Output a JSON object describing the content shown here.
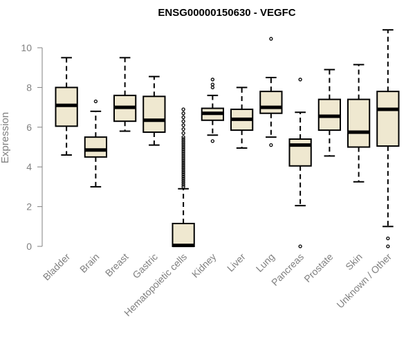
{
  "chart_data": {
    "type": "boxplot",
    "title": "ENSG00000150630 - VEGFC",
    "xlabel": "",
    "ylabel": "Expression",
    "ylim": [
      0,
      11
    ],
    "yticks": [
      0,
      2,
      4,
      6,
      8,
      10
    ],
    "grid": false,
    "legend": "none",
    "colors": {
      "box_fill": "#efe8d0",
      "stroke": "#000000",
      "axis": "#808080"
    },
    "categories": [
      "Bladder",
      "Brain",
      "Breast",
      "Gastric",
      "Hematopoietic cells",
      "Kidney",
      "Liver",
      "Lung",
      "Pancreas",
      "Prostate",
      "Skin",
      "Unknown / Other"
    ],
    "boxes": [
      {
        "whisker_low": 4.6,
        "q1": 6.05,
        "median": 7.1,
        "q3": 8.0,
        "whisker_high": 9.5,
        "outliers": []
      },
      {
        "whisker_low": 3.0,
        "q1": 4.5,
        "median": 4.85,
        "q3": 5.5,
        "whisker_high": 6.8,
        "outliers": [
          7.3
        ]
      },
      {
        "whisker_low": 5.8,
        "q1": 6.3,
        "median": 7.0,
        "q3": 7.6,
        "whisker_high": 9.5,
        "outliers": []
      },
      {
        "whisker_low": 5.1,
        "q1": 5.75,
        "median": 6.35,
        "q3": 7.55,
        "whisker_high": 8.55,
        "outliers": []
      },
      {
        "whisker_low": 0.0,
        "q1": 0.0,
        "median": 0.05,
        "q3": 1.15,
        "whisker_high": 2.9,
        "outliers": [
          3.0,
          3.1,
          3.2,
          3.3,
          3.4,
          3.5,
          3.6,
          3.7,
          3.8,
          3.9,
          4.0,
          4.1,
          4.2,
          4.3,
          4.4,
          4.5,
          4.6,
          4.7,
          4.8,
          4.9,
          5.0,
          5.1,
          5.2,
          5.3,
          5.4,
          5.5,
          5.7,
          5.9,
          6.1,
          6.3,
          6.5,
          6.7,
          6.9
        ]
      },
      {
        "whisker_low": 5.6,
        "q1": 6.35,
        "median": 6.7,
        "q3": 6.95,
        "whisker_high": 7.6,
        "outliers": [
          8.4,
          8.15,
          8.0,
          5.3
        ]
      },
      {
        "whisker_low": 4.95,
        "q1": 5.85,
        "median": 6.4,
        "q3": 6.9,
        "whisker_high": 8.0,
        "outliers": []
      },
      {
        "whisker_low": 5.5,
        "q1": 6.7,
        "median": 7.0,
        "q3": 7.8,
        "whisker_high": 8.5,
        "outliers": [
          10.45,
          5.1
        ]
      },
      {
        "whisker_low": 2.05,
        "q1": 4.05,
        "median": 5.1,
        "q3": 5.4,
        "whisker_high": 6.75,
        "outliers": [
          8.4,
          0.0
        ]
      },
      {
        "whisker_low": 4.55,
        "q1": 5.85,
        "median": 6.55,
        "q3": 7.4,
        "whisker_high": 8.9,
        "outliers": []
      },
      {
        "whisker_low": 3.25,
        "q1": 5.0,
        "median": 5.75,
        "q3": 7.4,
        "whisker_high": 9.15,
        "outliers": []
      },
      {
        "whisker_low": 1.0,
        "q1": 5.05,
        "median": 6.9,
        "q3": 7.8,
        "whisker_high": 10.9,
        "outliers": [
          0.4,
          0.0
        ]
      }
    ]
  }
}
